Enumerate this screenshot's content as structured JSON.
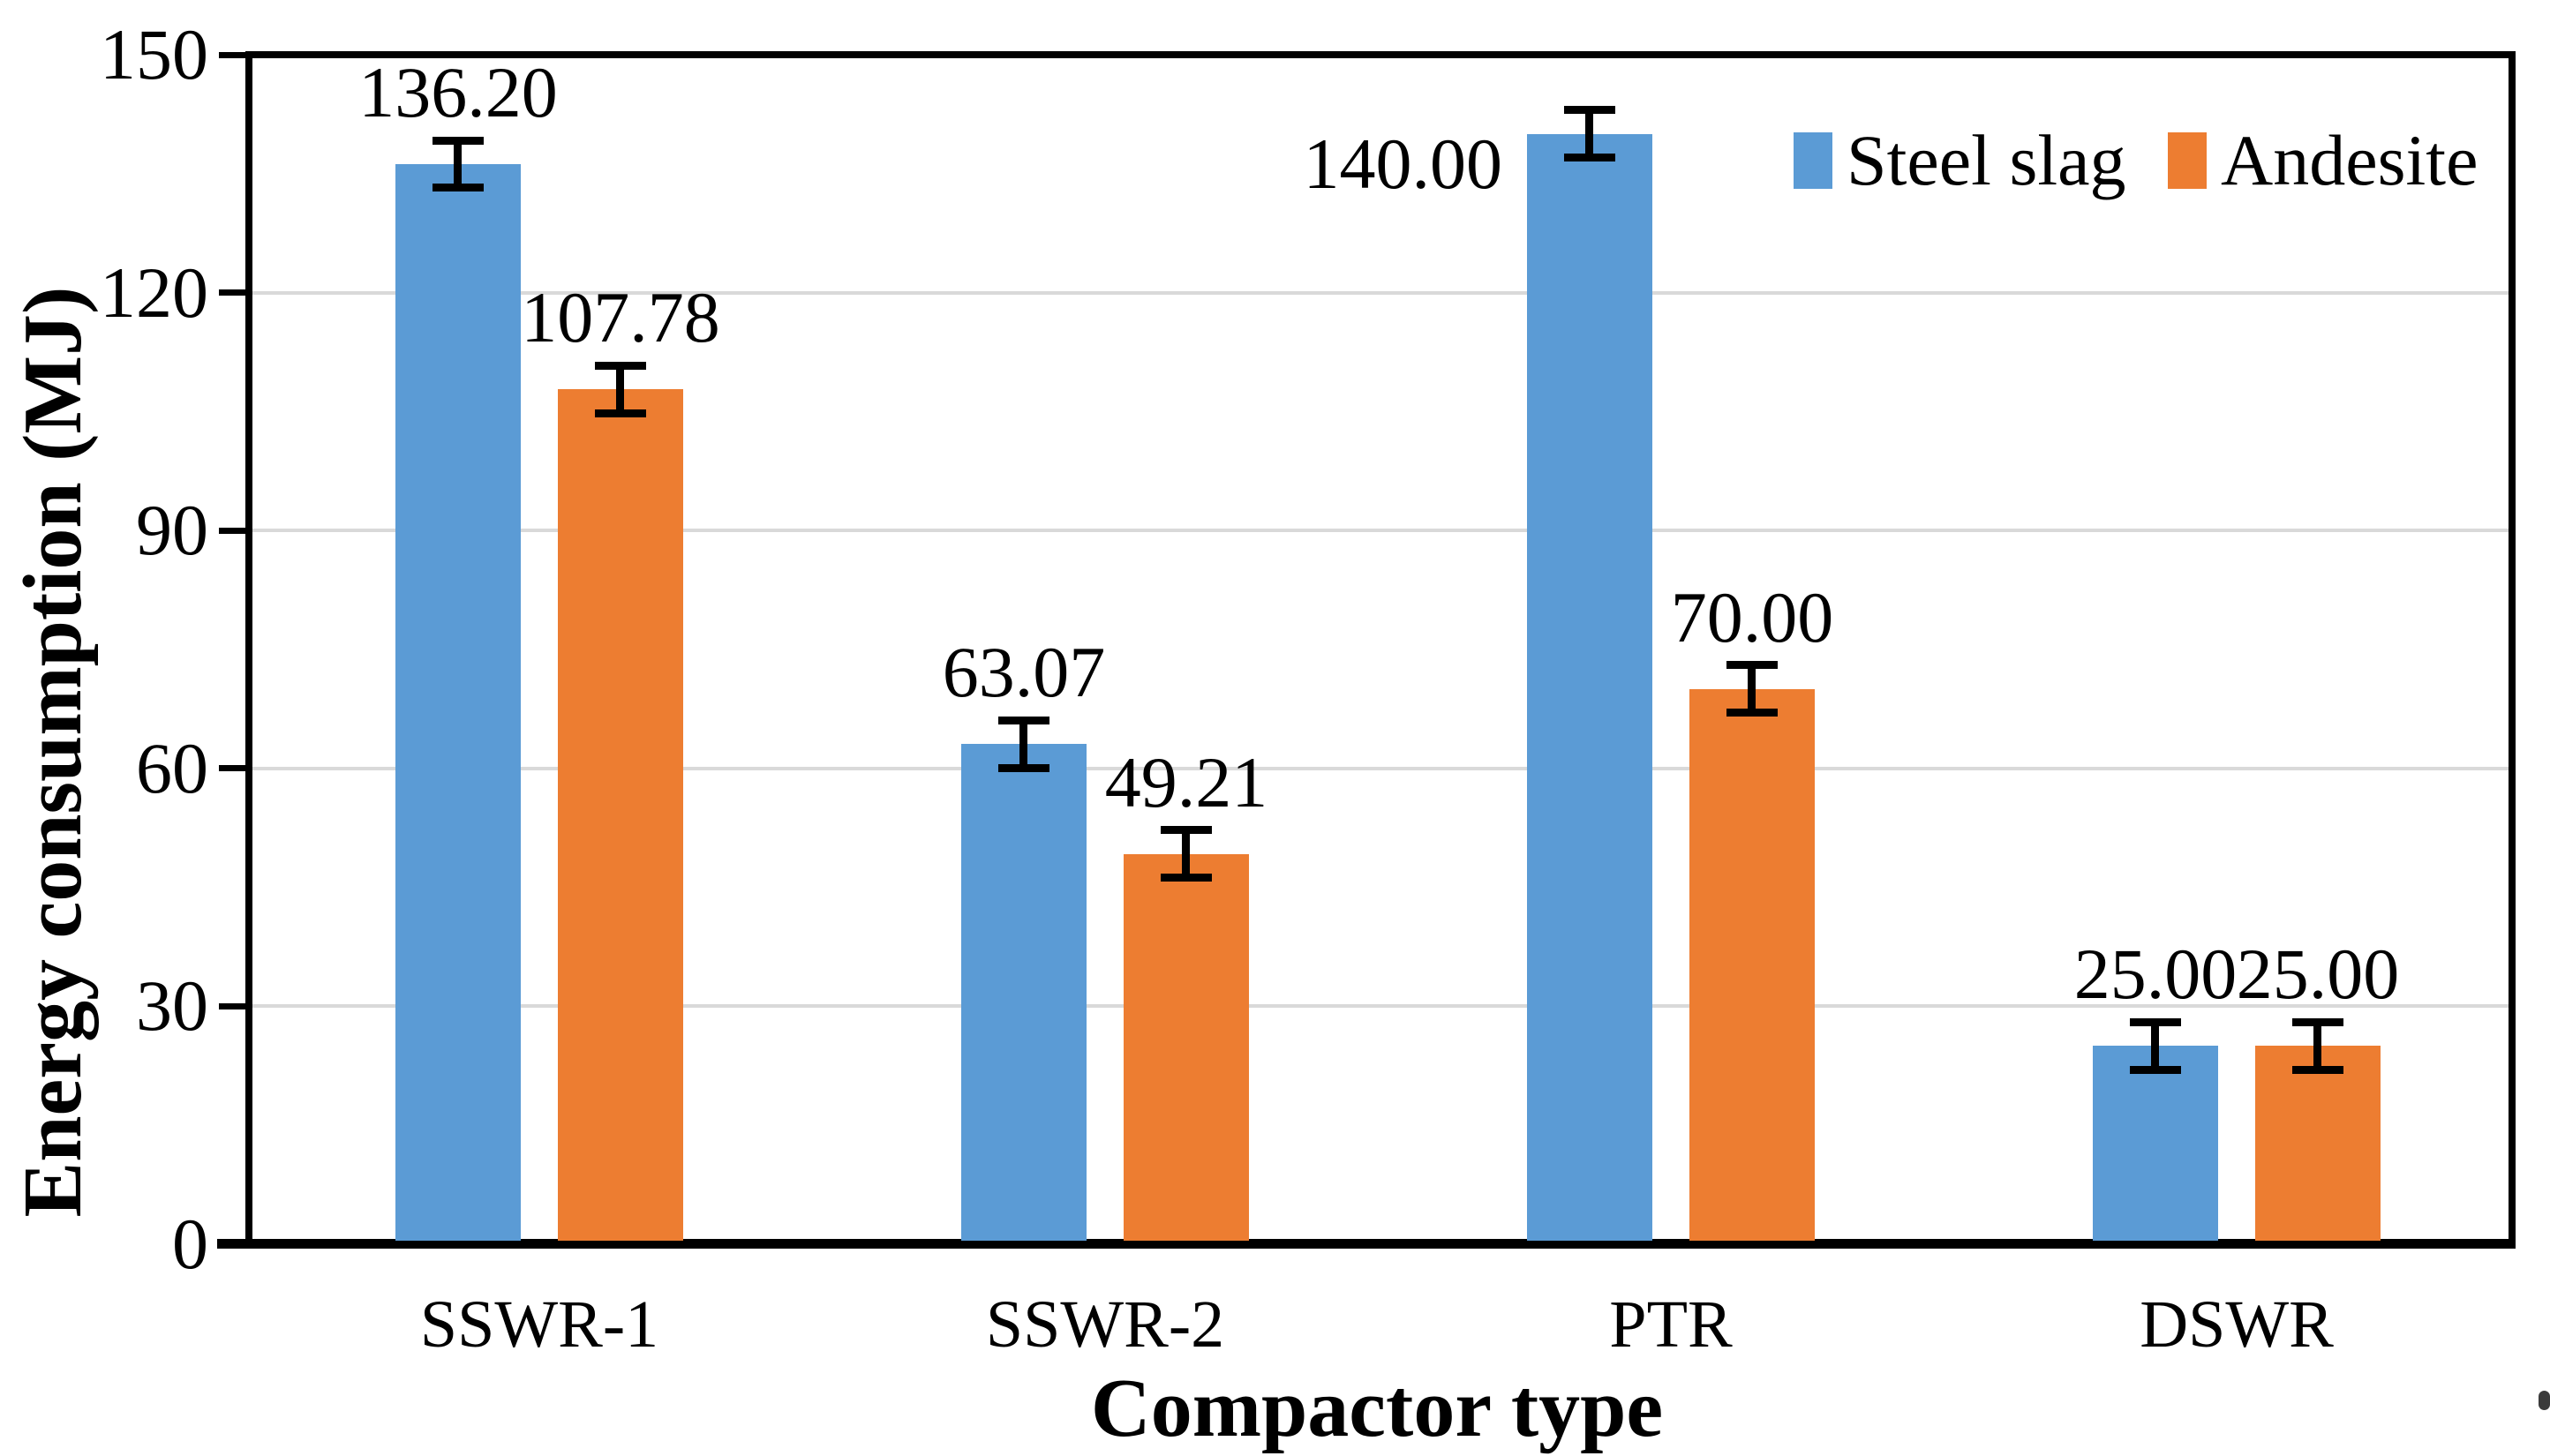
{
  "chart_data": {
    "type": "bar",
    "title": "",
    "xlabel": "Compactor type",
    "ylabel": "Energy consumption (MJ)",
    "categories": [
      "SSWR-1",
      "SSWR-2",
      "PTR",
      "DSWR"
    ],
    "series": [
      {
        "name": "Steel slag",
        "color": "#5b9bd5",
        "values": [
          136.2,
          63.07,
          140.0,
          25.0
        ],
        "labels": [
          "136.20",
          "63.07",
          "140.00",
          "25.00"
        ],
        "error": 3,
        "label_placement": [
          "above",
          "above",
          "left",
          "above"
        ]
      },
      {
        "name": "Andesite",
        "color": "#ed7d31",
        "values": [
          107.78,
          49.21,
          70.0,
          25.0
        ],
        "labels": [
          "107.78",
          "49.21",
          "70.00",
          "25.00"
        ],
        "error": 3,
        "label_placement": [
          "above",
          "above",
          "above",
          "above"
        ]
      }
    ],
    "ylim": [
      0,
      150
    ],
    "yticks": [
      0,
      30,
      60,
      90,
      120,
      150
    ],
    "ytick_labels": [
      "0",
      "30",
      "60",
      "90",
      "120",
      "150"
    ],
    "grid": "horizontal",
    "gridlines_at": [
      30,
      60,
      90,
      120
    ],
    "legend_position": "top-right-inside",
    "error_bars": true,
    "colors": {
      "axis": "#000000",
      "gridline": "#d9d9d9",
      "text": "#000000",
      "background": "#ffffff"
    }
  }
}
